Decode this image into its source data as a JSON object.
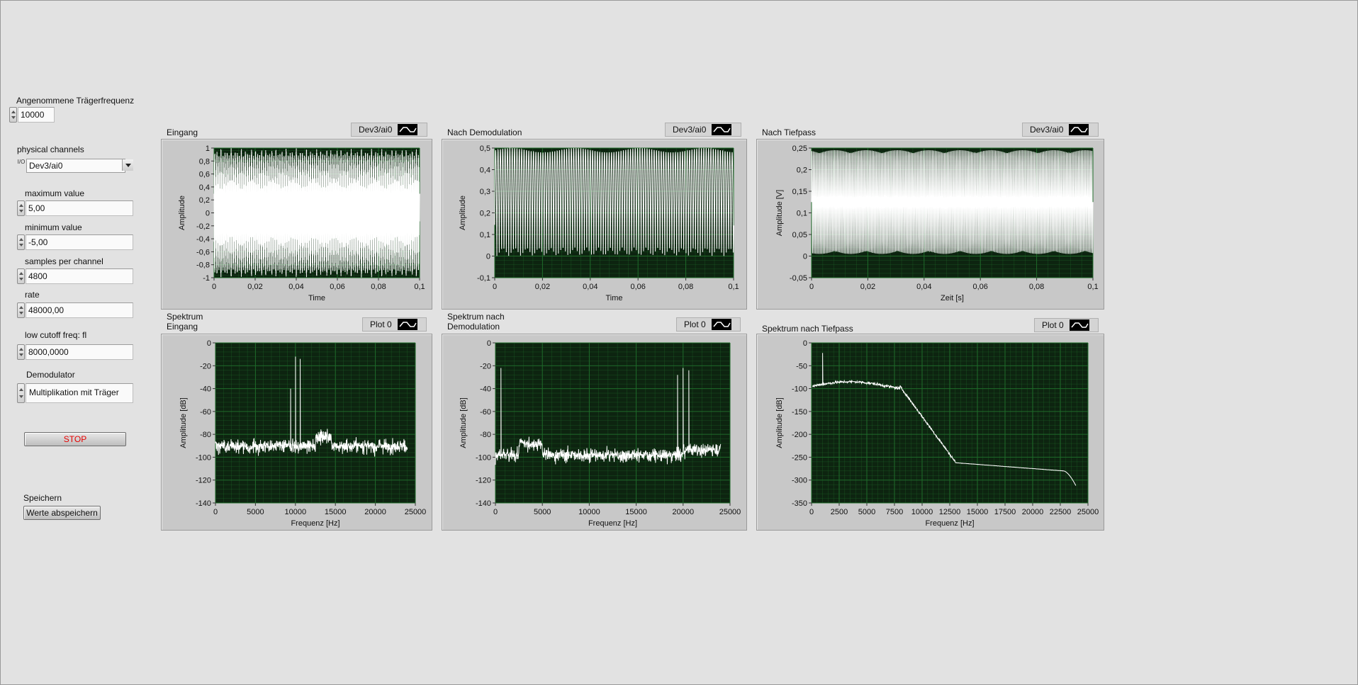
{
  "controls": {
    "carrier": {
      "label": "Angenommene Trägerfrequenz",
      "value": "10000"
    },
    "channels": {
      "label": "physical channels",
      "value": "Dev3/ai0",
      "io_icon": "I/O"
    },
    "max": {
      "label": "maximum value",
      "value": "5,00"
    },
    "min": {
      "label": "minimum value",
      "value": "-5,00"
    },
    "samples": {
      "label": "samples per channel",
      "value": "4800"
    },
    "rate": {
      "label": "rate",
      "value": "48000,00"
    },
    "cutoff": {
      "label": "low cutoff freq: fl",
      "value": "8000,0000"
    },
    "demod": {
      "label": "Demodulator",
      "value": "Multiplikation mit Träger"
    },
    "stop_label": "STOP",
    "save": {
      "label": "Speichern",
      "button": "Werte abspeichern"
    }
  },
  "colors": {
    "panel": "#e2e2e2",
    "plot_bg": "#0d2410",
    "grid": "#1f6b2a",
    "trace": "#ffffff",
    "stop_text": "#e60000"
  },
  "graphs": [
    {
      "id": "eingang",
      "title_lines": [
        "Eingang"
      ],
      "legend": "Dev3/ai0",
      "chart_data": {
        "type": "line",
        "signal": "am_input",
        "xlabel": "Time",
        "ylabel": "Amplitude",
        "xlim": [
          0,
          0.1
        ],
        "ylim": [
          -1,
          1
        ],
        "xticks": [
          "0",
          "0,02",
          "0,04",
          "0,06",
          "0,08",
          "0,1"
        ],
        "yticks": [
          "1",
          "0,8",
          "0,6",
          "0,4",
          "0,2",
          "0",
          "-0,2",
          "-0,4",
          "-0,6",
          "-0,8",
          "-1"
        ]
      }
    },
    {
      "id": "demod",
      "title_lines": [
        "Nach Demodulation"
      ],
      "legend": "Dev3/ai0",
      "chart_data": {
        "type": "line",
        "signal": "demod",
        "xlabel": "Time",
        "ylabel": "Amplitude",
        "xlim": [
          0,
          0.1
        ],
        "ylim": [
          -0.1,
          0.5
        ],
        "xticks": [
          "0",
          "0,02",
          "0,04",
          "0,06",
          "0,08",
          "0,1"
        ],
        "yticks": [
          "0,5",
          "0,4",
          "0,3",
          "0,2",
          "0,1",
          "0",
          "-0,1"
        ]
      }
    },
    {
      "id": "tiefpass",
      "title_lines": [
        "Nach Tiefpass"
      ],
      "legend": "Dev3/ai0",
      "chart_data": {
        "type": "line",
        "signal": "lowpass",
        "xlabel": "Zeit [s]",
        "ylabel": "Amplitude [V]",
        "xlim": [
          0,
          0.1
        ],
        "ylim": [
          -0.05,
          0.25
        ],
        "xticks": [
          "0",
          "0,02",
          "0,04",
          "0,06",
          "0,08",
          "0,1"
        ],
        "yticks": [
          "0,25",
          "0,2",
          "0,15",
          "0,1",
          "0,05",
          "0",
          "-0,05"
        ]
      }
    },
    {
      "id": "spek-eingang",
      "title_lines": [
        "Spektrum",
        "Eingang"
      ],
      "legend": "Plot 0",
      "chart_data": {
        "type": "line",
        "signal": "spec_input",
        "xlabel": "Frequenz [Hz]",
        "ylabel": "Amplitude [dB]",
        "xlim": [
          0,
          25000
        ],
        "ylim": [
          -140,
          0
        ],
        "xticks": [
          "0",
          "5000",
          "10000",
          "15000",
          "20000",
          "25000"
        ],
        "yticks": [
          "0",
          "-20",
          "-40",
          "-60",
          "-80",
          "-100",
          "-120",
          "-140"
        ]
      }
    },
    {
      "id": "spek-demod",
      "title_lines": [
        "Spektrum nach",
        "Demodulation"
      ],
      "legend": "Plot 0",
      "chart_data": {
        "type": "line",
        "signal": "spec_demod",
        "xlabel": "Frequenz [Hz]",
        "ylabel": "Amplitude [dB]",
        "xlim": [
          0,
          25000
        ],
        "ylim": [
          -140,
          0
        ],
        "xticks": [
          "0",
          "5000",
          "10000",
          "15000",
          "20000",
          "25000"
        ],
        "yticks": [
          "0",
          "-20",
          "-40",
          "-60",
          "-80",
          "-100",
          "-120",
          "-140"
        ]
      }
    },
    {
      "id": "spek-tiefpass",
      "title_lines": [
        "Spektrum nach Tiefpass"
      ],
      "legend": "Plot 0",
      "chart_data": {
        "type": "line",
        "signal": "spec_lowpass",
        "xlabel": "Frequenz [Hz]",
        "ylabel": "Amplitude [dB]",
        "xlim": [
          0,
          25000
        ],
        "ylim": [
          -350,
          0
        ],
        "xticks": [
          "0",
          "2500",
          "5000",
          "7500",
          "10000",
          "12500",
          "15000",
          "17500",
          "20000",
          "22500",
          "25000"
        ],
        "yticks": [
          "0",
          "-50",
          "-100",
          "-150",
          "-200",
          "-250",
          "-300",
          "-350"
        ]
      }
    }
  ]
}
